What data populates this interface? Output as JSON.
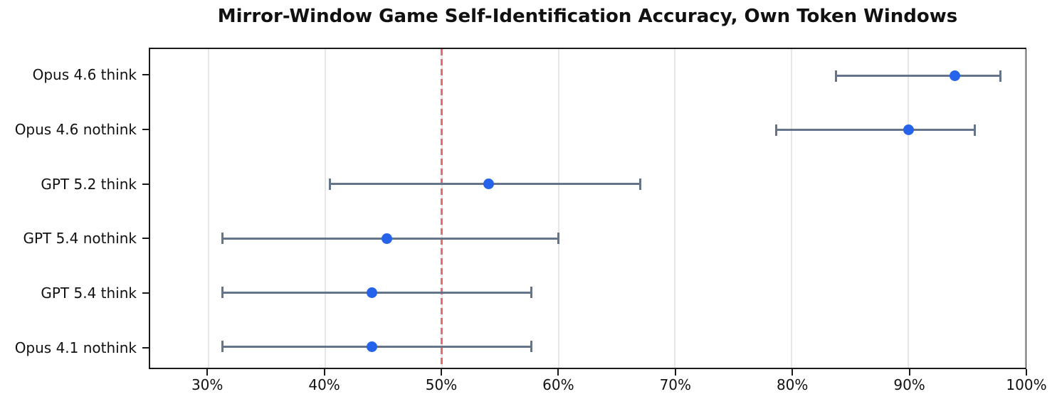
{
  "title": "Mirror-Window Game Self-Identification Accuracy, Own Token Windows",
  "chart_data": {
    "type": "scatter",
    "subtype": "horizontal-dot-plot-with-error-bars",
    "title": "Mirror-Window Game Self-Identification Accuracy, Own Token Windows",
    "categories": [
      "Opus 4.6 think",
      "Opus 4.6 nothink",
      "GPT 5.2 think",
      "GPT 5.4 nothink",
      "GPT 5.4 think",
      "Opus 4.1 nothink"
    ],
    "series": [
      {
        "name": "self-identification accuracy",
        "points": [
          {
            "label": "Opus 4.6 think",
            "value": 94.0,
            "ci_low": 83.8,
            "ci_high": 97.9
          },
          {
            "label": "Opus 4.6 nothink",
            "value": 90.0,
            "ci_low": 78.7,
            "ci_high": 95.7
          },
          {
            "label": "GPT 5.2 think",
            "value": 54.0,
            "ci_low": 40.4,
            "ci_high": 67.0
          },
          {
            "label": "GPT 5.4 nothink",
            "value": 45.3,
            "ci_low": 31.2,
            "ci_high": 60.0
          },
          {
            "label": "GPT 5.4 think",
            "value": 44.0,
            "ci_low": 31.2,
            "ci_high": 57.7
          },
          {
            "label": "Opus 4.1 nothink",
            "value": 44.0,
            "ci_low": 31.2,
            "ci_high": 57.7
          }
        ]
      }
    ],
    "xlabel": "",
    "ylabel": "",
    "xlim": [
      25,
      100
    ],
    "x_tick_values": [
      30,
      40,
      50,
      60,
      70,
      80,
      90,
      100
    ],
    "x_tick_labels": [
      "30%",
      "40%",
      "50%",
      "60%",
      "70%",
      "80%",
      "90%",
      "100%"
    ],
    "reference_line": {
      "value": 50,
      "style": "dashed",
      "orientation": "vertical"
    },
    "grid": "vertical-only",
    "legend": "none",
    "colors": {
      "point": "#2563eb",
      "error_bar": "#64748b",
      "reference": "#ee6b6b",
      "grid": "#e7e7e7",
      "spine": "#1a1a1a",
      "text": "#111111"
    }
  }
}
